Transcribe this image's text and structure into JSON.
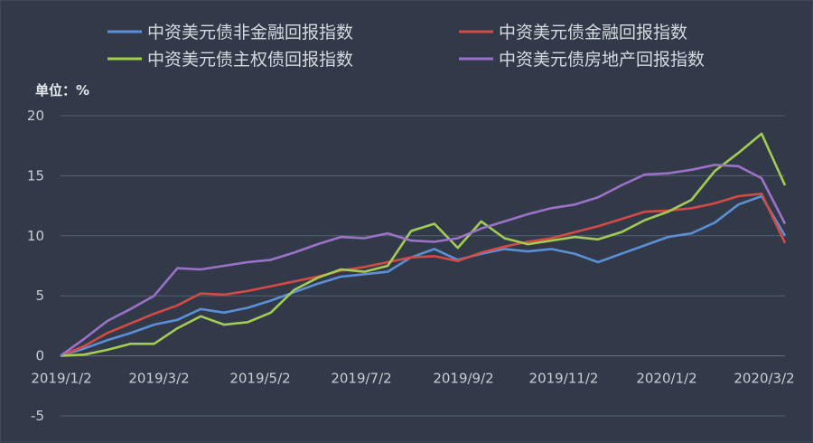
{
  "chart_data": {
    "type": "line",
    "unit_label": "单位：%",
    "ylim": [
      -5,
      20
    ],
    "yticks": [
      -5,
      0,
      5,
      10,
      15,
      20
    ],
    "xticks": [
      "2019/1/2",
      "2019/3/2",
      "2019/5/2",
      "2019/7/2",
      "2019/9/2",
      "2019/11/2",
      "2020/1/2",
      "2020/3/2"
    ],
    "grid": true,
    "legend_position": "top",
    "x": [
      "2019/1/2",
      "2019/1/16",
      "2019/2/1",
      "2019/2/15",
      "2019/3/2",
      "2019/3/16",
      "2019/4/1",
      "2019/4/15",
      "2019/5/2",
      "2019/5/16",
      "2019/6/1",
      "2019/6/15",
      "2019/7/2",
      "2019/7/16",
      "2019/8/1",
      "2019/8/15",
      "2019/9/2",
      "2019/9/16",
      "2019/10/1",
      "2019/10/15",
      "2019/11/2",
      "2019/11/16",
      "2019/12/1",
      "2019/12/15",
      "2020/1/2",
      "2020/1/16",
      "2020/2/1",
      "2020/2/15",
      "2020/3/2",
      "2020/3/9",
      "2020/3/16",
      "2020/3/18"
    ],
    "series": [
      {
        "name": "中资美元债非金融回报指数",
        "color": "#5b8fd6",
        "values": [
          0.0,
          0.6,
          1.3,
          1.9,
          2.6,
          3.0,
          3.9,
          3.6,
          4.0,
          4.6,
          5.3,
          6.0,
          6.6,
          6.8,
          7.0,
          8.2,
          8.9,
          8.0,
          8.5,
          8.9,
          8.7,
          8.9,
          8.5,
          7.8,
          8.5,
          9.2,
          9.9,
          10.2,
          11.1,
          12.6,
          13.3,
          10.0
        ]
      },
      {
        "name": "中资美元债金融回报指数",
        "color": "#d44a44",
        "values": [
          0.0,
          0.8,
          1.9,
          2.7,
          3.5,
          4.2,
          5.2,
          5.1,
          5.4,
          5.8,
          6.2,
          6.6,
          7.1,
          7.4,
          7.8,
          8.2,
          8.3,
          7.9,
          8.6,
          9.1,
          9.5,
          9.8,
          10.3,
          10.8,
          11.4,
          12.0,
          12.1,
          12.3,
          12.7,
          13.3,
          13.5,
          9.4
        ]
      },
      {
        "name": "中资美元债主权债回报指数",
        "color": "#a3cc52",
        "values": [
          0.0,
          0.1,
          0.5,
          1.0,
          1.0,
          2.3,
          3.3,
          2.6,
          2.8,
          3.6,
          5.5,
          6.5,
          7.2,
          7.0,
          7.5,
          10.4,
          11.0,
          9.0,
          11.2,
          9.8,
          9.3,
          9.6,
          9.9,
          9.7,
          10.3,
          11.3,
          12.0,
          13.0,
          15.4,
          16.9,
          18.5,
          14.2
        ]
      },
      {
        "name": "中资美元债房地产回报指数",
        "color": "#9b72c8",
        "values": [
          0.0,
          1.4,
          2.9,
          3.9,
          5.0,
          7.3,
          7.2,
          7.5,
          7.8,
          8.0,
          8.6,
          9.3,
          9.9,
          9.8,
          10.2,
          9.6,
          9.5,
          9.8,
          10.6,
          11.2,
          11.8,
          12.3,
          12.6,
          13.2,
          14.2,
          15.1,
          15.2,
          15.5,
          15.9,
          15.8,
          14.8,
          11.0
        ]
      }
    ]
  }
}
